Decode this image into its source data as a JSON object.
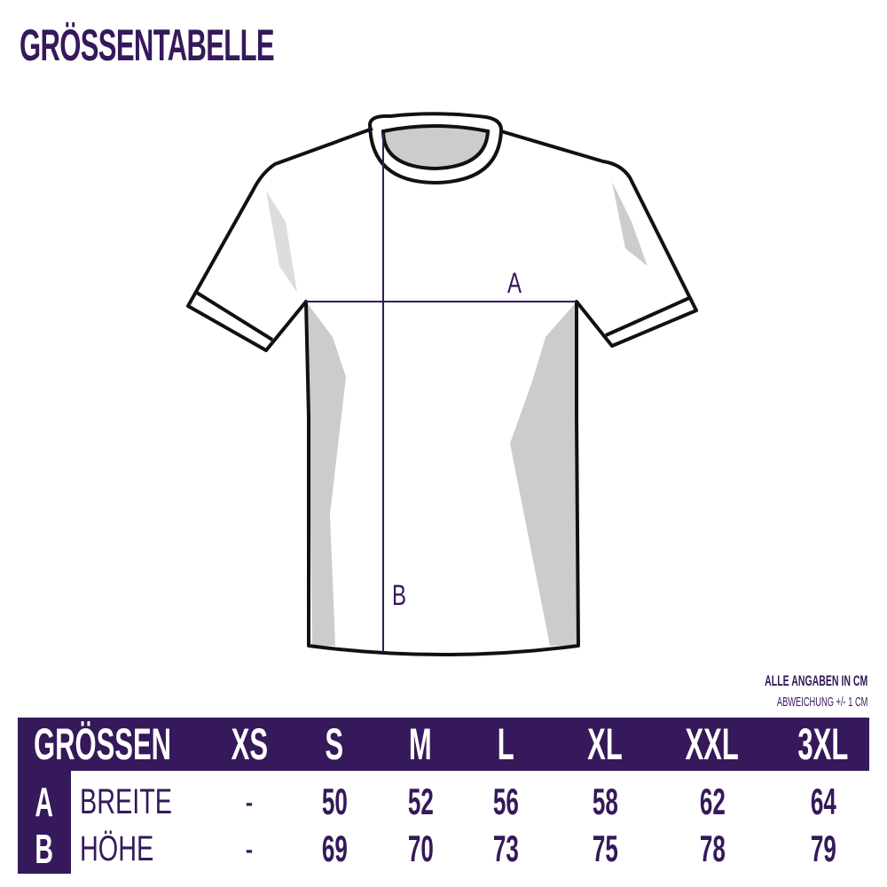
{
  "title": "GRÖSSENTABELLE",
  "diagram": {
    "label_a": "A",
    "label_b": "B"
  },
  "notes": {
    "units": "ALLE ANGABEN IN CM",
    "tolerance": "ABWEICHUNG +/- 1 CM"
  },
  "table": {
    "header": "GRÖSSEN",
    "sizes": [
      "XS",
      "S",
      "M",
      "L",
      "XL",
      "XXL",
      "3XL"
    ],
    "rows": [
      {
        "letter": "A",
        "label": "BREITE",
        "values": [
          "-",
          "50",
          "52",
          "56",
          "58",
          "62",
          "64"
        ]
      },
      {
        "letter": "B",
        "label": "HÖHE",
        "values": [
          "-",
          "69",
          "70",
          "73",
          "75",
          "78",
          "79"
        ]
      }
    ]
  },
  "colors": {
    "accent": "#35195a",
    "shadow": "#cccccc",
    "outline": "#111111"
  }
}
